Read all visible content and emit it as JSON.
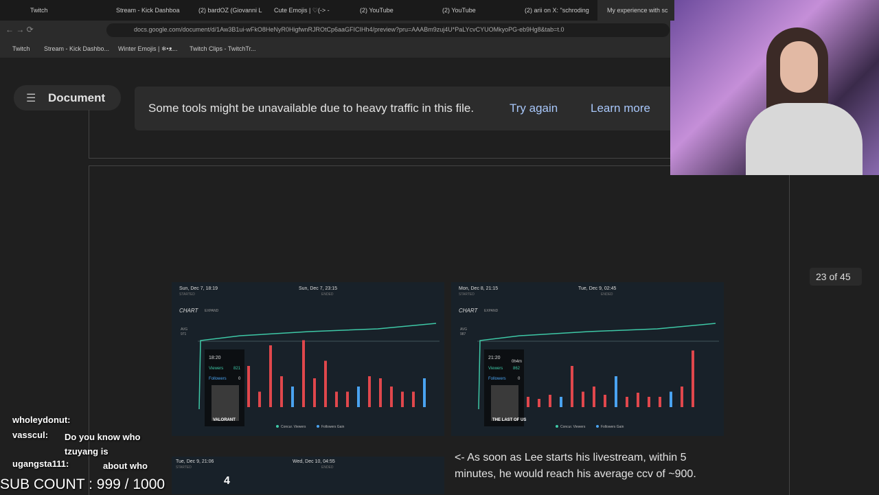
{
  "browser": {
    "tabs": [
      "Twitch",
      "Stream - Kick Dashboa",
      "(2) bardOZ (Giovanni L",
      "Cute Emojis | ♡(-> - <-)♪.ℝ",
      "(2) YouTube",
      "(2) YouTube",
      "(2) arii on X: \"schroding",
      "My experience with sc"
    ],
    "url": "docs.google.com/document/d/1Aw3B1ui-wFkO8HeNyR0HigfwnRJROtCp6aaGFICIHh4/preview?pru=AAABm9zuj4U*PaLYcvCYUOMkyoPG-eb9Hg8&tab=t.0",
    "bookmarks": [
      "Twitch",
      "Stream - Kick Dashbo...",
      "Winter Emojis | ❄•ᴥ...",
      "Twitch Clips - TwitchTr..."
    ]
  },
  "document_button": "Document",
  "banner": {
    "message": "Some tools might be unavailable due to heavy traffic in this file.",
    "actions": [
      "Try again",
      "Learn more"
    ]
  },
  "page_indicator": "23 of 45",
  "cards": [
    {
      "start": "Sun, Dec 7, 18:19",
      "end": "Sun, Dec 7, 23:15",
      "started": "STARTED",
      "ended": "ENDED",
      "chart": "CHART",
      "expand": "EXPAND",
      "avg_label": "AVG",
      "avg": 971,
      "tooltip_time": "18:20",
      "viewers_label": "Viewers",
      "viewers": 821,
      "followers_label": "Followers",
      "followers": 0,
      "game": "VALORANT",
      "legend": [
        "Concur. Viewers",
        "Followers Gain"
      ]
    },
    {
      "start": "Mon, Dec 8, 21:15",
      "end": "Tue, Dec 9, 02:45",
      "started": "STARTED",
      "ended": "ENDED",
      "chart": "CHART",
      "expand": "EXPAND",
      "avg_label": "AVG",
      "avg": 987,
      "tooltip_time": "21:20",
      "duration": "0h4m",
      "viewers_label": "Viewers",
      "viewers": 862,
      "followers_label": "Followers",
      "followers": 0,
      "game": "THE LAST OF US",
      "legend": [
        "Concur. Viewers",
        "Followers Gain"
      ]
    }
  ],
  "card3": {
    "start": "Tue, Dec 9, 21:06",
    "end": "Wed, Dec 10, 04:55",
    "started": "STARTED",
    "ended": "ENDED",
    "number": 4
  },
  "paragraph": "<- As soon as Lee starts his livestream, within 5 minutes, he would reach his average ccv of ~900.",
  "chat": [
    {
      "user": "wholeydonut:",
      "message": ""
    },
    {
      "user": "vasscul:",
      "message": "Do you know who tzuyang is"
    },
    {
      "user": "ugangsta111:",
      "message": "about who"
    }
  ],
  "sub_count": "SUB COUNT : 999 / 1000"
}
